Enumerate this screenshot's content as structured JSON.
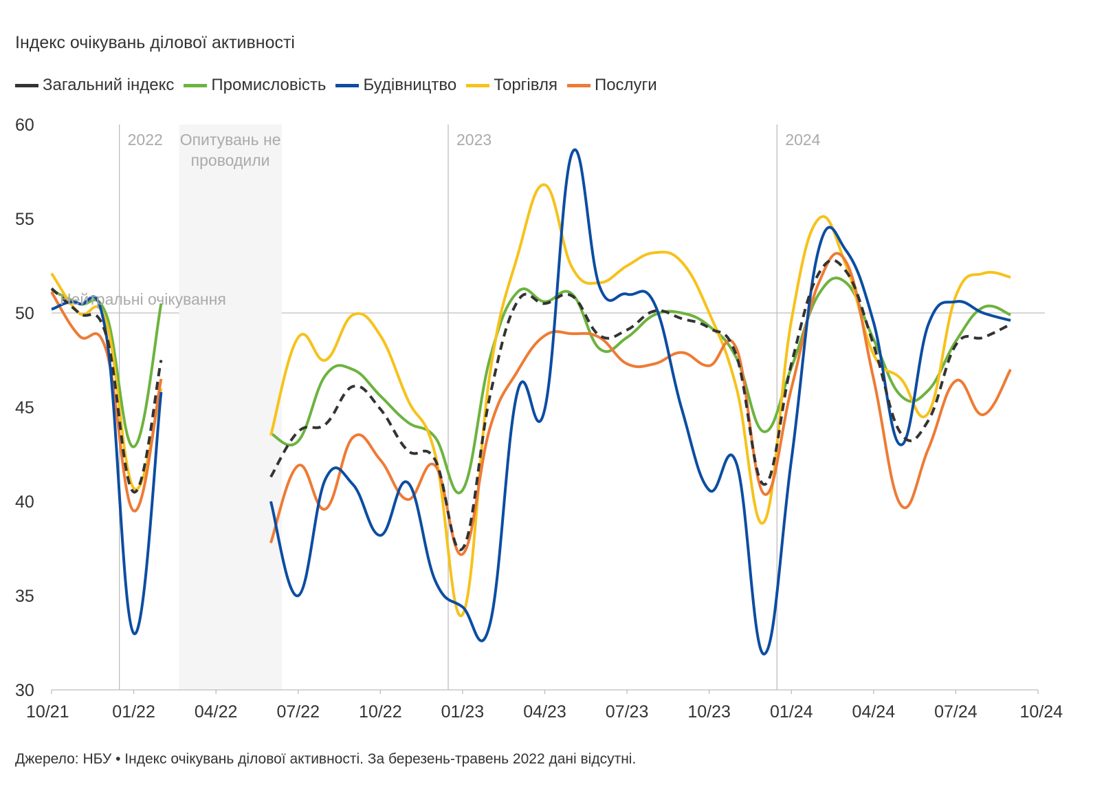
{
  "title": "Індекс очікувань ділової активності",
  "footer": "Джерело: НБУ • Індекс очікувань ділової активності. За березень-травень 2022 дані відсутні.",
  "chart_data": {
    "type": "line",
    "title": "Індекс очікувань ділової активності",
    "ylim": [
      30,
      60
    ],
    "yticks": [
      30,
      35,
      40,
      45,
      50,
      55,
      60
    ],
    "x": [
      "10/21",
      "11/21",
      "12/21",
      "01/22",
      "02/22",
      "03/22",
      "04/22",
      "05/22",
      "06/22",
      "07/22",
      "08/22",
      "09/22",
      "10/22",
      "11/22",
      "12/22",
      "01/23",
      "02/23",
      "03/23",
      "04/23",
      "05/23",
      "06/23",
      "07/23",
      "08/23",
      "09/23",
      "10/23",
      "11/23",
      "12/23",
      "01/24",
      "02/24",
      "03/24",
      "04/24",
      "05/24",
      "06/24",
      "07/24",
      "08/24",
      "09/24",
      "10/24"
    ],
    "xtick_labels": [
      "10/21",
      "01/22",
      "04/22",
      "07/22",
      "10/22",
      "01/23",
      "04/23",
      "07/23",
      "10/23",
      "01/24",
      "04/24",
      "07/24",
      "10/24"
    ],
    "year_labels": [
      {
        "label": "2022",
        "x_index": 2.5
      },
      {
        "label": "2023",
        "x_index": 14.5
      },
      {
        "label": "2024",
        "x_index": 26.5
      }
    ],
    "gap_label": "Опитувань не проводили",
    "gap_range": [
      4.5,
      8.5
    ],
    "reference_line": {
      "value": 50,
      "label": "Нейтральні очікування"
    },
    "series": [
      {
        "name": "Загальний індекс",
        "color": "#333333",
        "dashed": true,
        "values": [
          51.3,
          50.0,
          48.8,
          40.5,
          47.5,
          null,
          null,
          null,
          41.3,
          43.7,
          44.1,
          46.1,
          44.9,
          42.7,
          42.2,
          37.5,
          45.6,
          50.6,
          50.5,
          50.9,
          48.8,
          49.1,
          50.1,
          49.7,
          49.2,
          47.7,
          40.9,
          47.3,
          52.1,
          52.2,
          48.3,
          43.6,
          44.3,
          48.3,
          48.7,
          49.4,
          null
        ]
      },
      {
        "name": "Промисловість",
        "color": "#6db33f",
        "dashed": false,
        "values": [
          51.2,
          50.5,
          49.9,
          42.9,
          50.5,
          null,
          null,
          null,
          43.6,
          43.2,
          46.7,
          47.0,
          45.6,
          44.2,
          43.4,
          40.6,
          47.6,
          51.1,
          50.6,
          51.0,
          48.1,
          48.7,
          49.9,
          50.0,
          49.3,
          47.6,
          43.7,
          47.1,
          51.0,
          51.6,
          48.6,
          45.6,
          45.9,
          48.5,
          50.3,
          49.9,
          null
        ]
      },
      {
        "name": "Будівництво",
        "color": "#0c4da2",
        "dashed": false,
        "values": [
          50.2,
          50.5,
          48.8,
          33.0,
          45.8,
          null,
          null,
          null,
          40.0,
          35.0,
          41.2,
          40.9,
          38.2,
          41.0,
          35.8,
          34.4,
          33.5,
          45.8,
          44.9,
          58.5,
          51.4,
          51.0,
          50.5,
          44.9,
          40.6,
          42.0,
          31.9,
          42.2,
          53.4,
          53.3,
          49.5,
          43.0,
          49.4,
          50.6,
          50.0,
          49.6,
          null
        ]
      },
      {
        "name": "Торгівля",
        "color": "#f6c21c",
        "dashed": false,
        "values": [
          52.1,
          50.0,
          49.5,
          40.7,
          46.0,
          null,
          null,
          null,
          43.5,
          48.7,
          47.5,
          49.9,
          48.8,
          45.4,
          42.5,
          34.0,
          46.8,
          53.0,
          56.8,
          52.4,
          51.6,
          52.5,
          53.2,
          52.7,
          50.0,
          46.0,
          38.9,
          49.6,
          55.0,
          52.5,
          47.8,
          46.5,
          44.7,
          50.9,
          52.1,
          51.9,
          null
        ]
      },
      {
        "name": "Послуги",
        "color": "#ee7b35",
        "dashed": false,
        "values": [
          51.1,
          48.8,
          48.0,
          39.5,
          46.5,
          null,
          null,
          null,
          37.8,
          41.9,
          39.6,
          43.4,
          42.2,
          40.1,
          41.9,
          37.2,
          43.9,
          46.9,
          48.8,
          48.9,
          48.7,
          47.3,
          47.3,
          47.9,
          47.2,
          48.1,
          40.4,
          46.0,
          51.6,
          52.7,
          46.5,
          39.8,
          42.8,
          46.4,
          44.6,
          47.0,
          null
        ]
      }
    ]
  }
}
